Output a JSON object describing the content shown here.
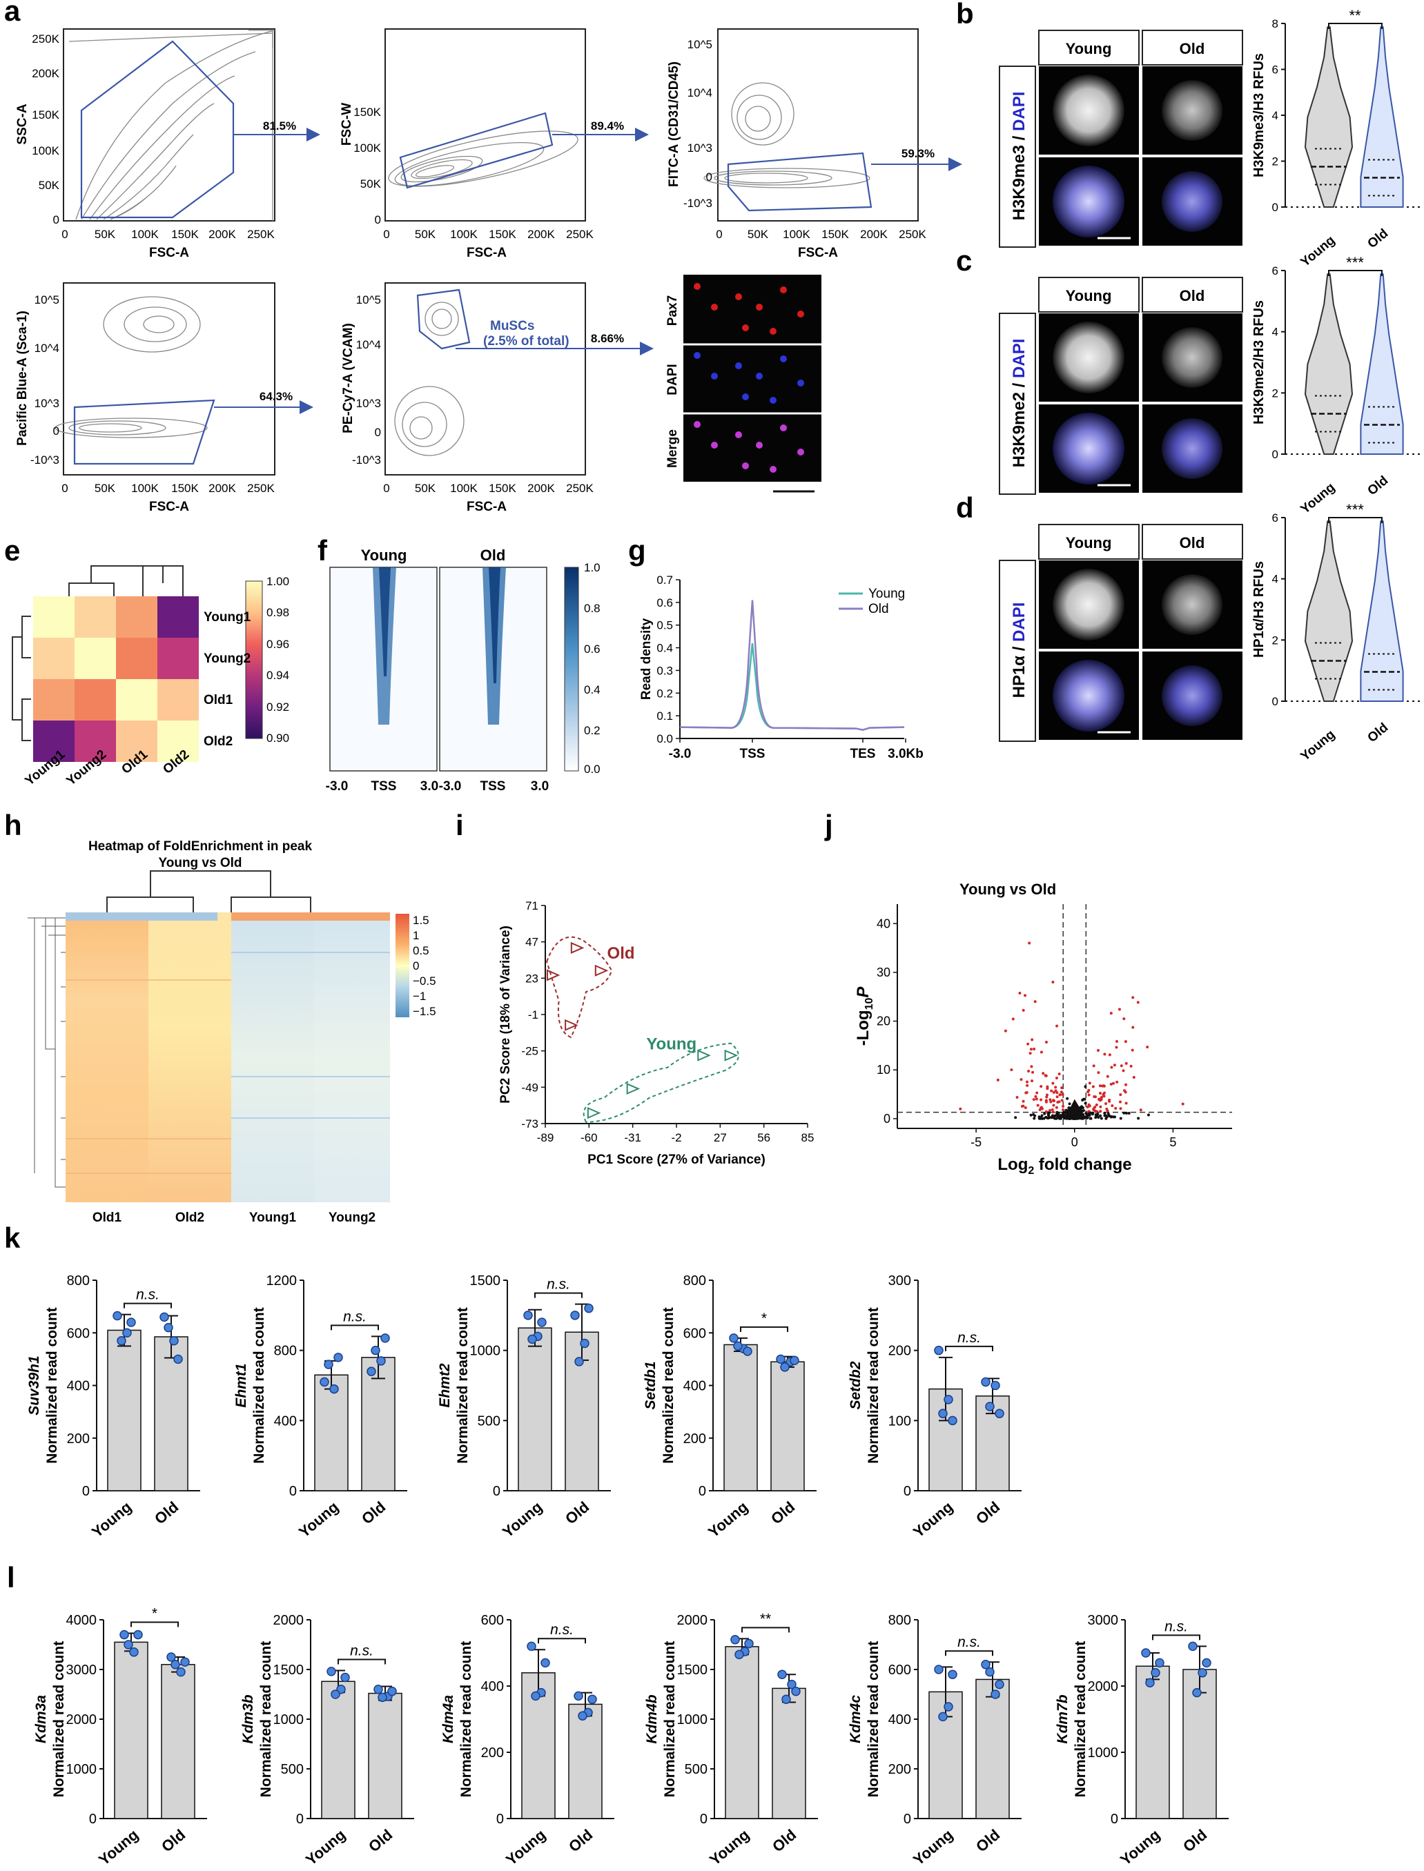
{
  "panels": {
    "a": {
      "label": "a",
      "plots": [
        {
          "xlabel": "FSC-A",
          "ylabel": "SSC-A",
          "yticks": [
            "0",
            "50K",
            "100K",
            "150K",
            "200K",
            "250K"
          ],
          "xticks": [
            "0",
            "50K",
            "100K",
            "150K",
            "200K",
            "250K"
          ],
          "gate_percent": "81.5%"
        },
        {
          "xlabel": "FSC-A",
          "ylabel": "FSC-W",
          "yticks": [
            "0",
            "50K",
            "100K",
            "150K"
          ],
          "xticks": [
            "0",
            "50K",
            "100K",
            "150K",
            "200K",
            "250K"
          ],
          "gate_percent": "89.4%"
        },
        {
          "xlabel": "FSC-A",
          "ylabel": "FITC-A (CD31/CD45)",
          "yticks": [
            "10^5",
            "10^4",
            "10^3",
            "0",
            "-10^3"
          ],
          "xticks": [
            "0",
            "50K",
            "100K",
            "150K",
            "200K",
            "250K"
          ],
          "gate_percent": "59.3%"
        },
        {
          "xlabel": "FSC-A",
          "ylabel": "Pacific Blue-A (Sca-1)",
          "yticks": [
            "10^5",
            "10^4",
            "10^3",
            "0",
            "-10^3"
          ],
          "xticks": [
            "0",
            "50K",
            "100K",
            "150K",
            "200K",
            "250K"
          ],
          "gate_percent": "64.3%"
        },
        {
          "xlabel": "FSC-A",
          "ylabel": "PE-Cy7-A (VCAM)",
          "yticks": [
            "10^5",
            "10^4",
            "10^3",
            "0",
            "-10^3"
          ],
          "xticks": [
            "0",
            "50K",
            "100K",
            "150K",
            "200K",
            "250K"
          ],
          "gate_percent": "8.66%",
          "gate_name": "MuSCs",
          "gate_note": "(2.5% of total)"
        }
      ],
      "image_rows": [
        "Pax7",
        "DAPI",
        "Merge"
      ]
    },
    "bcd": [
      {
        "label": "b",
        "marker": "H3K9me3",
        "ylabel": "H3K9me3/H3 RFUs",
        "yticks": [
          "0",
          "2",
          "4",
          "6",
          "8"
        ],
        "sig": "**",
        "groups": [
          "Young",
          "Old"
        ]
      },
      {
        "label": "c",
        "marker": "H3K9me2",
        "ylabel": "H3K9me2/H3 RFUs",
        "yticks": [
          "0",
          "2",
          "4",
          "6"
        ],
        "sig": "***",
        "groups": [
          "Young",
          "Old"
        ]
      },
      {
        "label": "d",
        "marker": "HP1α",
        "ylabel": "HP1α/H3 RFUs",
        "yticks": [
          "0",
          "2",
          "4",
          "6"
        ],
        "sig": "***",
        "groups": [
          "Young",
          "Old"
        ]
      }
    ],
    "dapi_label": "DAPI",
    "e": {
      "label": "e",
      "samples": [
        "Young1",
        "Young2",
        "Old1",
        "Old2"
      ],
      "colorbar_ticks": [
        "1.00",
        "0.98",
        "0.96",
        "0.94",
        "0.92",
        "0.90"
      ]
    },
    "f": {
      "label": "f",
      "groups": [
        "Young",
        "Old"
      ],
      "xticks": [
        "-3.0",
        "TSS",
        "3.0",
        "-3.0",
        "TSS",
        "3.0"
      ],
      "colorbar_ticks": [
        "1.0",
        "0.8",
        "0.6",
        "0.4",
        "0.2",
        "0.0"
      ]
    },
    "h": {
      "label": "h",
      "title1": "Heatmap of FoldEnrichment in peak",
      "title2": "Young vs Old",
      "samples": [
        "Old1",
        "Old2",
        "Young1",
        "Young2"
      ],
      "colorbar_ticks": [
        "1.5",
        "1",
        "0.5",
        "0",
        "−0.5",
        "−1",
        "−1.5"
      ]
    },
    "i": {
      "label": "i"
    },
    "j": {
      "label": "j",
      "title": "Young vs Old",
      "xlabel": "Log",
      "xlabel_sub": "2",
      "xlabel_rest": " fold change",
      "ylabel": "-Log",
      "ylabel_sub": "10",
      "ylabel_rest": "P"
    },
    "k": {
      "label": "k"
    },
    "l": {
      "label": "l"
    }
  },
  "chart_data": [
    {
      "id": "g",
      "type": "line",
      "ylabel": "Read density",
      "x_ticks": [
        "-3.0",
        "TSS",
        "TES",
        "3.0Kb"
      ],
      "ylim": [
        0,
        0.7
      ],
      "yticks": [
        0.0,
        0.1,
        0.2,
        0.3,
        0.4,
        0.5,
        0.6,
        0.7
      ],
      "legend_position": "top-right",
      "series": [
        {
          "name": "Young",
          "color": "#4db6ac",
          "baseline": 0.05,
          "peak": 0.42
        },
        {
          "name": "Old",
          "color": "#8e7cc3",
          "baseline": 0.05,
          "peak": 0.61
        }
      ]
    },
    {
      "id": "i",
      "type": "scatter",
      "xlabel": "PC1 Score (27% of Variance)",
      "ylabel": "PC2 Score (18% of Variance)",
      "xticks": [
        -89,
        -60,
        -31,
        -2,
        27,
        56,
        85
      ],
      "yticks": [
        -73,
        -49,
        -25,
        -1,
        23,
        47,
        71
      ],
      "xlim": [
        -89,
        85
      ],
      "ylim": [
        -73,
        71
      ],
      "series": [
        {
          "name": "Old",
          "color": "#9c2b2b",
          "points": [
            [
              -68,
              43
            ],
            [
              -84,
              25
            ],
            [
              -52,
              28
            ],
            [
              -72,
              -8
            ]
          ]
        },
        {
          "name": "Young",
          "color": "#2e8b69",
          "points": [
            [
              16,
              -28
            ],
            [
              34,
              -28
            ],
            [
              -31,
              -50
            ],
            [
              -57,
              -66
            ]
          ]
        }
      ]
    },
    {
      "id": "j",
      "type": "scatter",
      "title": "Young vs Old",
      "xticks": [
        -5,
        0,
        5
      ],
      "yticks": [
        0,
        10,
        20,
        30,
        40
      ],
      "xlim": [
        -9,
        8
      ],
      "ylim": [
        -2,
        44
      ],
      "threshold_x": [
        -0.58,
        0.58
      ],
      "threshold_y": 1.3
    },
    {
      "id": "k",
      "type": "bar",
      "categories": [
        "Young",
        "Old"
      ],
      "charts": [
        {
          "gene": "Suv39h1",
          "ylim": [
            0,
            800
          ],
          "yticks": [
            0,
            200,
            400,
            600,
            800
          ],
          "means": [
            610,
            585
          ],
          "sd": [
            60,
            80
          ],
          "points": [
            [
              665,
              600,
              570,
              640
            ],
            [
              660,
              570,
              620,
              500
            ]
          ],
          "sig": "n.s."
        },
        {
          "gene": "Ehmt1",
          "ylim": [
            0,
            1200
          ],
          "yticks": [
            0,
            400,
            800,
            1200
          ],
          "means": [
            660,
            760
          ],
          "sd": [
            80,
            120
          ],
          "points": [
            [
              620,
              580,
              720,
              760
            ],
            [
              680,
              740,
              800,
              870
            ]
          ],
          "sig": "n.s."
        },
        {
          "gene": "Ehmt2",
          "ylim": [
            0,
            1500
          ],
          "yticks": [
            0,
            500,
            1000,
            1500
          ],
          "means": [
            1160,
            1130
          ],
          "sd": [
            130,
            200
          ],
          "points": [
            [
              1250,
              1100,
              1080,
              1200
            ],
            [
              1250,
              1050,
              920,
              1300
            ]
          ],
          "sig": "n.s."
        },
        {
          "gene": "Setdb1",
          "ylim": [
            0,
            800
          ],
          "yticks": [
            0,
            200,
            400,
            600,
            800
          ],
          "means": [
            555,
            490
          ],
          "sd": [
            25,
            20
          ],
          "points": [
            [
              580,
              540,
              550,
              530
            ],
            [
              500,
              490,
              470,
              495
            ]
          ],
          "sig": "*"
        },
        {
          "gene": "Setdb2",
          "ylim": [
            0,
            300
          ],
          "yticks": [
            0,
            100,
            200,
            300
          ],
          "means": [
            145,
            135
          ],
          "sd": [
            45,
            25
          ],
          "points": [
            [
              200,
              130,
              110,
              100
            ],
            [
              155,
              150,
              120,
              110
            ]
          ],
          "sig": "n.s."
        }
      ]
    },
    {
      "id": "l",
      "type": "bar",
      "categories": [
        "Young",
        "Old"
      ],
      "charts": [
        {
          "gene": "Kdm3a",
          "ylim": [
            0,
            4000
          ],
          "yticks": [
            0,
            1000,
            2000,
            3000,
            4000
          ],
          "means": [
            3550,
            3100
          ],
          "sd": [
            180,
            150
          ],
          "points": [
            [
              3700,
              3350,
              3500,
              3700
            ],
            [
              3250,
              2950,
              3100,
              3150
            ]
          ],
          "sig": "*"
        },
        {
          "gene": "Kdm3b",
          "ylim": [
            0,
            2000
          ],
          "yticks": [
            0,
            500,
            1000,
            1500,
            2000
          ],
          "means": [
            1380,
            1260
          ],
          "sd": [
            110,
            70
          ],
          "points": [
            [
              1480,
              1300,
              1250,
              1420
            ],
            [
              1300,
              1230,
              1220,
              1280
            ]
          ],
          "sig": "n.s."
        },
        {
          "gene": "Kdm4a",
          "ylim": [
            0,
            600
          ],
          "yticks": [
            0,
            200,
            400,
            600
          ],
          "means": [
            440,
            345
          ],
          "sd": [
            70,
            35
          ],
          "points": [
            [
              520,
              380,
              370,
              470
            ],
            [
              370,
              320,
              310,
              360
            ]
          ],
          "sig": "n.s."
        },
        {
          "gene": "Kdm4b",
          "ylim": [
            0,
            2000
          ],
          "yticks": [
            0,
            500,
            1000,
            1500,
            2000
          ],
          "means": [
            1730,
            1310
          ],
          "sd": [
            80,
            140
          ],
          "points": [
            [
              1800,
              1680,
              1650,
              1760
            ],
            [
              1450,
              1350,
              1200,
              1280
            ]
          ],
          "sig": "**"
        },
        {
          "gene": "Kdm4c",
          "ylim": [
            0,
            800
          ],
          "yticks": [
            0,
            200,
            400,
            600,
            800
          ],
          "means": [
            510,
            560
          ],
          "sd": [
            100,
            70
          ],
          "points": [
            [
              600,
              450,
              410,
              580
            ],
            [
              620,
              500,
              590,
              540
            ]
          ],
          "sig": "n.s."
        },
        {
          "gene": "Kdm7b",
          "ylim": [
            0,
            3000
          ],
          "yticks": [
            0,
            1000,
            2000,
            3000
          ],
          "means": [
            2300,
            2250
          ],
          "sd": [
            200,
            350
          ],
          "points": [
            [
              2500,
              2200,
              2050,
              2350
            ],
            [
              2600,
              2200,
              1900,
              2350
            ]
          ],
          "sig": "n.s."
        }
      ]
    }
  ]
}
